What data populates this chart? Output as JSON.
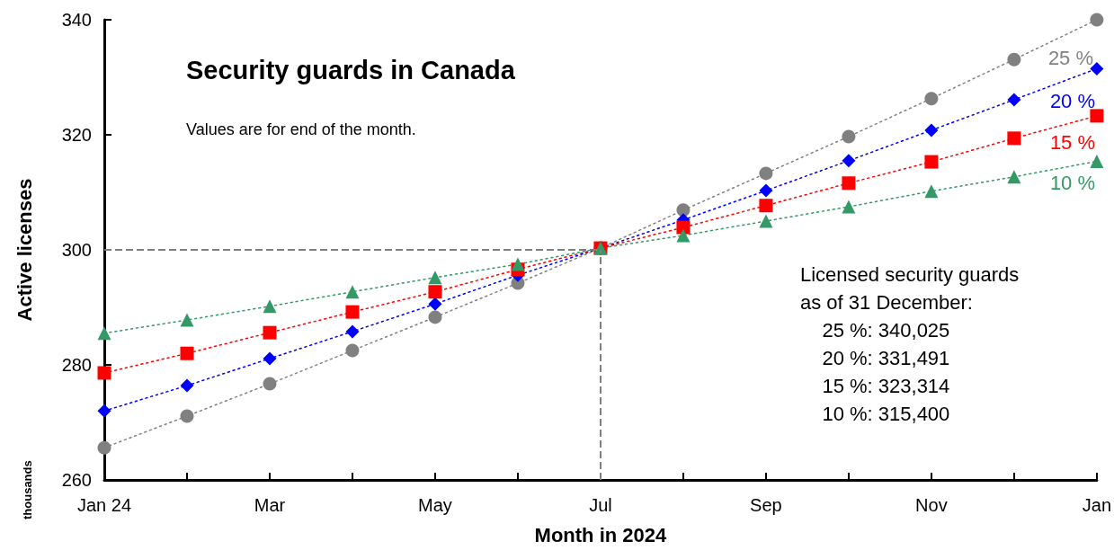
{
  "chart_data": {
    "type": "line",
    "title": "Security guards in Canada",
    "subtitle": "Values are for end of the month.",
    "xlabel": "Month in 2024",
    "ylabel": "Active licenses",
    "categories": [
      "Jan 24",
      null,
      "Mar",
      null,
      "May",
      null,
      "Jul",
      null,
      "Sep",
      null,
      "Nov",
      null,
      "Jan"
    ],
    "series": [
      {
        "name": "25 %",
        "color": "#808080",
        "marker": "circle",
        "values": [
          265.6,
          271.1,
          276.7,
          282.5,
          288.3,
          294.2,
          300.3,
          306.9,
          313.3,
          319.7,
          326.3,
          333.1,
          340
        ]
      },
      {
        "name": "20 %",
        "color": "#0000ff",
        "marker": "diamond",
        "values": [
          272.0,
          276.4,
          281.1,
          285.8,
          290.6,
          295.6,
          300.3,
          305.2,
          310.3,
          315.5,
          320.8,
          326.1,
          331.5
        ]
      },
      {
        "name": "15 %",
        "color": "#ff0000",
        "marker": "square",
        "values": [
          278.6,
          282.0,
          285.6,
          289.2,
          292.7,
          296.6,
          300.3,
          303.9,
          307.7,
          311.6,
          315.3,
          319.4,
          323.3
        ]
      },
      {
        "name": "10 %",
        "color": "#339966",
        "marker": "triangle",
        "values": [
          285.5,
          287.8,
          290.2,
          292.7,
          295.2,
          297.5,
          300.3,
          302.5,
          305.0,
          307.5,
          310.2,
          312.7,
          315.4
        ]
      }
    ],
    "line_style": "dotted",
    "ylim": [
      260,
      340
    ],
    "yticks": [
      260,
      280,
      300,
      320,
      340
    ],
    "grid": false,
    "legend": false,
    "ref_lines": [
      {
        "axis": "y",
        "value": 300,
        "color": "#808080",
        "line_style": "dashed"
      },
      {
        "axis": "x",
        "value": "Jul",
        "color": "#808080",
        "line_style": "dashed"
      }
    ],
    "annotations": [
      "Licensed security guards\nas of 31 December:\n    25 %: 340,025\n    20 %: 331,491\n    15 %: 323,314\n    10 %: 315,400",
      "thousands"
    ]
  }
}
